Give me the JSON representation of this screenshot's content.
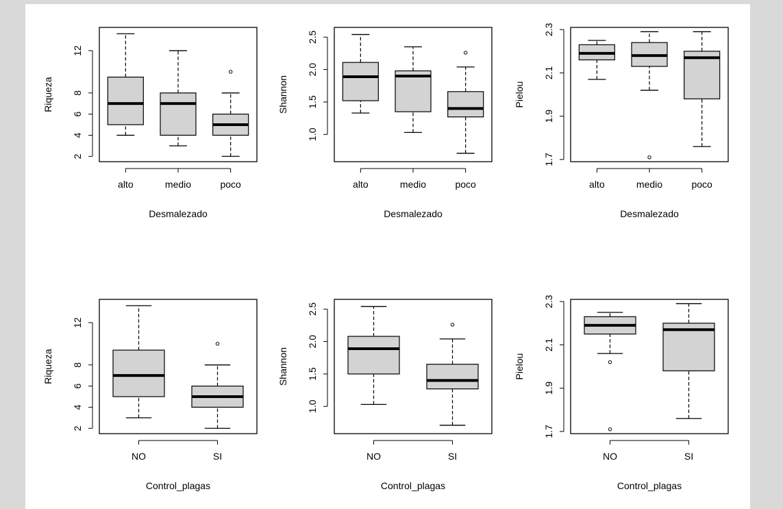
{
  "chart_data": [
    {
      "type": "boxplot",
      "xlabel": "Desmalezado",
      "ylabel": "Riqueza",
      "categories": [
        "alto",
        "medio",
        "poco"
      ],
      "yticks": [
        2,
        4,
        6,
        8,
        12
      ],
      "ylim": [
        1.5,
        14.2
      ],
      "boxes": [
        {
          "min": 4,
          "q1": 5,
          "median": 7,
          "q3": 9.5,
          "max": 13.6,
          "outliers": []
        },
        {
          "min": 3,
          "q1": 4,
          "median": 7,
          "q3": 8,
          "max": 12,
          "outliers": []
        },
        {
          "min": 2,
          "q1": 4,
          "median": 5,
          "q3": 6,
          "max": 8,
          "outliers": [
            10
          ]
        }
      ]
    },
    {
      "type": "boxplot",
      "xlabel": "Desmalezado",
      "ylabel": "Shannon",
      "categories": [
        "alto",
        "medio",
        "poco"
      ],
      "yticks": [
        "1.0",
        "1.5",
        "2.0",
        "2.5"
      ],
      "ylim": [
        0.58,
        2.65
      ],
      "boxes": [
        {
          "min": 1.33,
          "q1": 1.52,
          "median": 1.89,
          "q3": 2.11,
          "max": 2.54,
          "outliers": []
        },
        {
          "min": 1.03,
          "q1": 1.35,
          "median": 1.9,
          "q3": 1.98,
          "max": 2.35,
          "outliers": []
        },
        {
          "min": 0.71,
          "q1": 1.27,
          "median": 1.4,
          "q3": 1.66,
          "max": 2.04,
          "outliers": [
            2.26
          ]
        }
      ]
    },
    {
      "type": "boxplot",
      "xlabel": "Desmalezado",
      "ylabel": "Pielou",
      "categories": [
        "alto",
        "medio",
        "poco"
      ],
      "yticks": [
        "1.7",
        "1.9",
        "2.1",
        "2.3"
      ],
      "ylim": [
        1.69,
        2.31
      ],
      "boxes": [
        {
          "min": 2.07,
          "q1": 2.16,
          "median": 2.19,
          "q3": 2.23,
          "max": 2.25,
          "outliers": []
        },
        {
          "min": 2.02,
          "q1": 2.13,
          "median": 2.18,
          "q3": 2.24,
          "max": 2.29,
          "outliers": [
            1.71
          ]
        },
        {
          "min": 1.76,
          "q1": 1.98,
          "median": 2.17,
          "q3": 2.2,
          "max": 2.29,
          "outliers": []
        }
      ]
    },
    {
      "type": "boxplot",
      "xlabel": "Control_plagas",
      "ylabel": "Riqueza",
      "categories": [
        "NO",
        "SI"
      ],
      "yticks": [
        2,
        4,
        6,
        8,
        12
      ],
      "ylim": [
        1.5,
        14.2
      ],
      "boxes": [
        {
          "min": 3,
          "q1": 5,
          "median": 7,
          "q3": 9.4,
          "max": 13.6,
          "outliers": []
        },
        {
          "min": 2,
          "q1": 4,
          "median": 5,
          "q3": 6,
          "max": 8,
          "outliers": [
            10
          ]
        }
      ]
    },
    {
      "type": "boxplot",
      "xlabel": "Control_plagas",
      "ylabel": "Shannon",
      "categories": [
        "NO",
        "SI"
      ],
      "yticks": [
        "1.0",
        "1.5",
        "2.0",
        "2.5"
      ],
      "ylim": [
        0.58,
        2.65
      ],
      "boxes": [
        {
          "min": 1.03,
          "q1": 1.5,
          "median": 1.89,
          "q3": 2.08,
          "max": 2.54,
          "outliers": []
        },
        {
          "min": 0.71,
          "q1": 1.27,
          "median": 1.4,
          "q3": 1.65,
          "max": 2.04,
          "outliers": [
            2.26
          ]
        }
      ]
    },
    {
      "type": "boxplot",
      "xlabel": "Control_plagas",
      "ylabel": "Pielou",
      "categories": [
        "NO",
        "SI"
      ],
      "yticks": [
        "1.7",
        "1.9",
        "2.1",
        "2.3"
      ],
      "ylim": [
        1.69,
        2.31
      ],
      "boxes": [
        {
          "min": 2.06,
          "q1": 2.15,
          "median": 2.19,
          "q3": 2.23,
          "max": 2.25,
          "outliers": [
            2.02,
            1.71
          ]
        },
        {
          "min": 1.76,
          "q1": 1.98,
          "median": 2.17,
          "q3": 2.2,
          "max": 2.29,
          "outliers": []
        }
      ]
    }
  ],
  "colors": {
    "box_fill": "#d3d3d3",
    "line": "#000000",
    "background": "#ffffff",
    "frame": "#d9d9d9"
  }
}
